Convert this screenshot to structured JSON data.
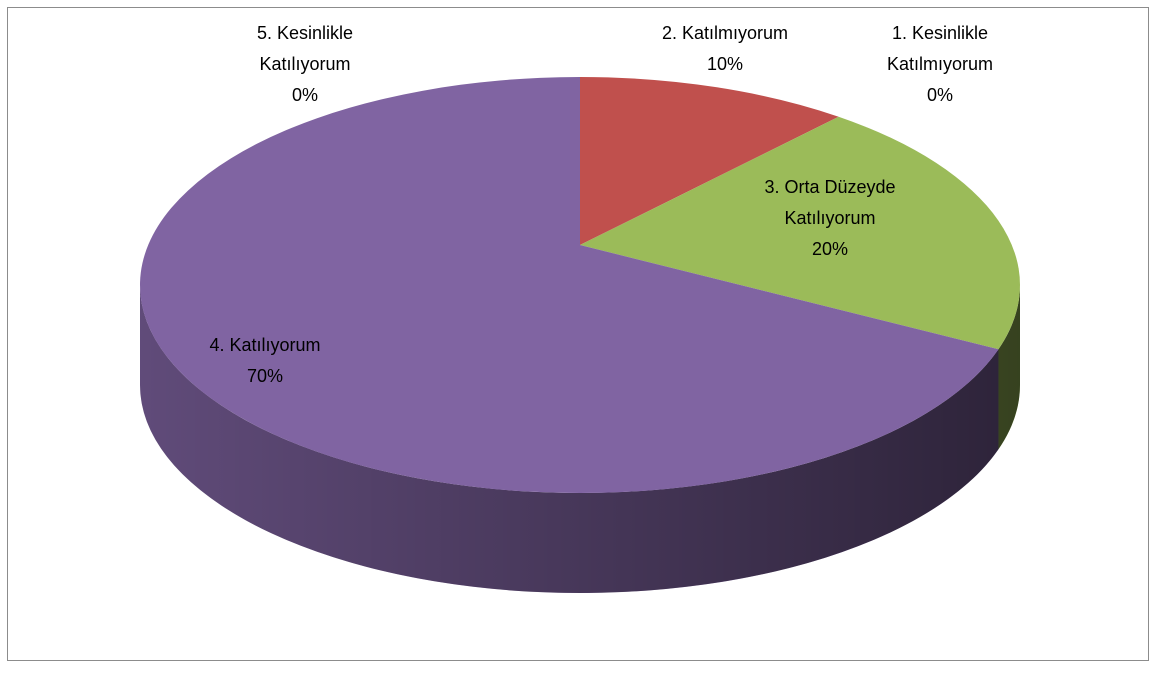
{
  "chart_data": {
    "type": "pie",
    "categories": [
      "1. Kesinlikle Katılmıyorum",
      "2. Katılmıyorum",
      "3. Orta Düzeyde Katılıyorum",
      "4. Katılıyorum",
      "5. Kesinlikle Katılıyorum"
    ],
    "values": [
      0,
      10,
      20,
      70,
      0
    ],
    "value_labels": [
      "0%",
      "10%",
      "20%",
      "70%",
      "0%"
    ],
    "colors": [
      "#4f81bd",
      "#c0504d",
      "#9bbb59",
      "#8064a2",
      "#4bacc6"
    ]
  }
}
